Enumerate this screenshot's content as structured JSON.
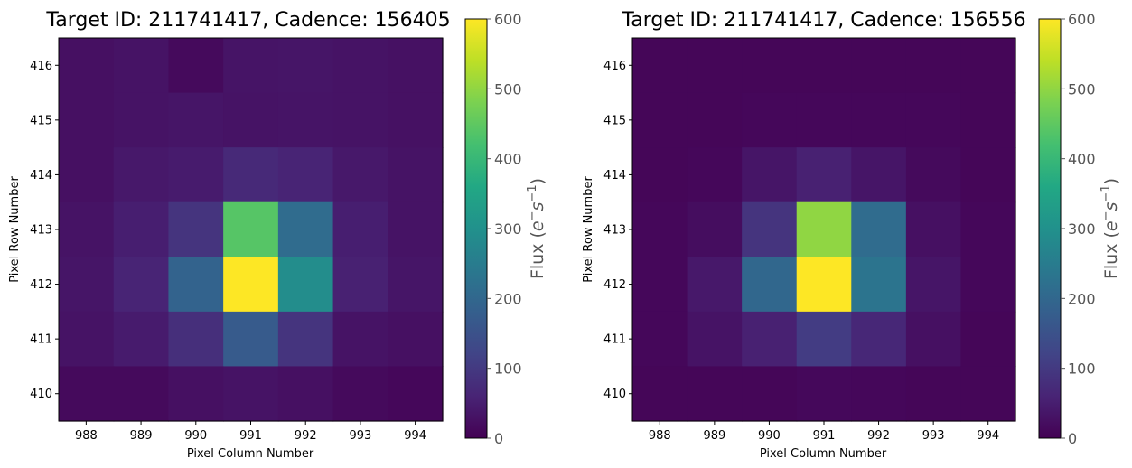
{
  "colormap": "viridis",
  "chart_data": [
    {
      "type": "heatmap",
      "title": "Target ID: 211741417, Cadence: 156405",
      "xlabel": "Pixel Column Number",
      "ylabel": "Pixel Row Number",
      "x": [
        988,
        989,
        990,
        991,
        992,
        993,
        994
      ],
      "y": [
        416,
        415,
        414,
        413,
        412,
        411,
        410
      ],
      "values": [
        [
          25,
          30,
          15,
          32,
          35,
          30,
          28
        ],
        [
          25,
          30,
          35,
          30,
          32,
          30,
          28
        ],
        [
          25,
          40,
          45,
          70,
          60,
          40,
          30
        ],
        [
          30,
          50,
          90,
          440,
          210,
          50,
          30
        ],
        [
          35,
          60,
          190,
          600,
          290,
          55,
          35
        ],
        [
          30,
          45,
          80,
          170,
          90,
          30,
          25
        ],
        [
          15,
          15,
          25,
          30,
          25,
          15,
          10
        ]
      ],
      "colorbar": {
        "label": "Flux ($e^{-}s^{-1}$)",
        "label_display": {
          "main": "Flux (",
          "e": "e",
          "e_sup": "−",
          "s": "s",
          "s_sup": "−1",
          "close": ")"
        },
        "range": [
          0,
          600
        ],
        "ticks": [
          "0",
          "100",
          "200",
          "300",
          "400",
          "500",
          "600"
        ]
      }
    },
    {
      "type": "heatmap",
      "title": "Target ID: 211741417, Cadence: 156556",
      "xlabel": "Pixel Column Number",
      "ylabel": "Pixel Row Number",
      "x": [
        988,
        989,
        990,
        991,
        992,
        993,
        994
      ],
      "y": [
        416,
        415,
        414,
        413,
        412,
        411,
        410
      ],
      "values": [
        [
          8,
          8,
          8,
          8,
          8,
          8,
          8
        ],
        [
          8,
          8,
          10,
          10,
          10,
          10,
          8
        ],
        [
          8,
          10,
          35,
          55,
          35,
          15,
          8
        ],
        [
          10,
          20,
          90,
          500,
          210,
          25,
          10
        ],
        [
          10,
          40,
          200,
          600,
          230,
          35,
          10
        ],
        [
          10,
          30,
          55,
          105,
          65,
          25,
          8
        ],
        [
          8,
          8,
          8,
          12,
          10,
          8,
          8
        ]
      ],
      "colorbar": {
        "label": "Flux ($e^{-}s^{-1}$)",
        "label_display": {
          "main": "Flux (",
          "e": "e",
          "e_sup": "−",
          "s": "s",
          "s_sup": "−1",
          "close": ")"
        },
        "range": [
          0,
          600
        ],
        "ticks": [
          "0",
          "100",
          "200",
          "300",
          "400",
          "500",
          "600"
        ]
      }
    }
  ]
}
